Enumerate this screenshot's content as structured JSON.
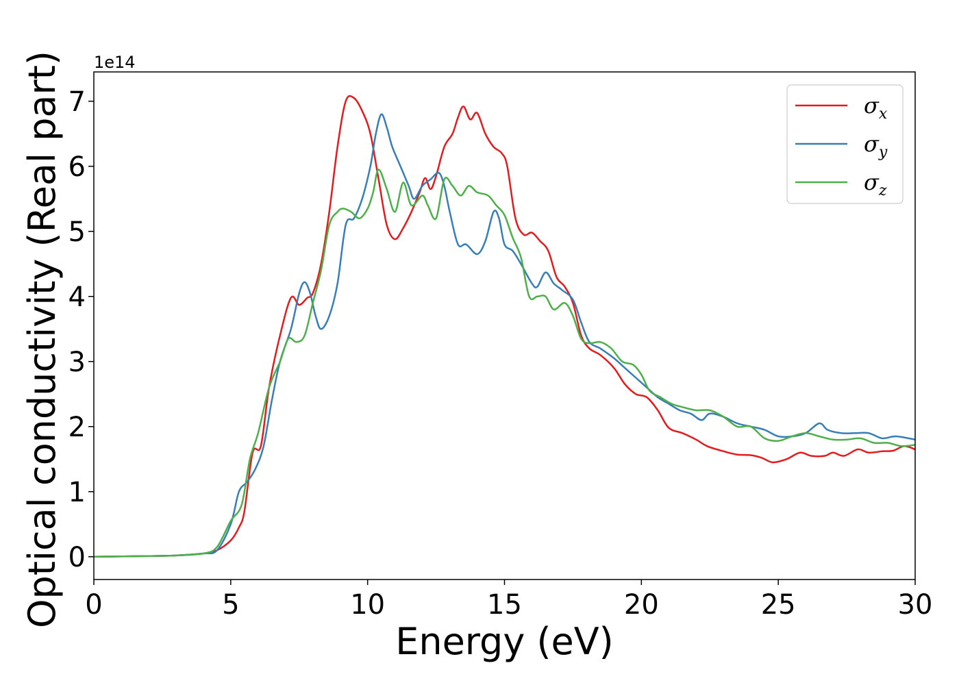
{
  "chart_data": {
    "type": "line",
    "xlabel": "Energy (eV)",
    "ylabel": "Optical conductivity (Real part)",
    "y_offset_label": "1e14",
    "y_scale": 100000000000000.0,
    "xlim": [
      0,
      30
    ],
    "ylim": [
      -0.35,
      7.45
    ],
    "x_ticks": [
      0,
      5,
      10,
      15,
      20,
      25,
      30
    ],
    "y_ticks": [
      0,
      1,
      2,
      3,
      4,
      5,
      6,
      7
    ],
    "grid": false,
    "legend_position": "top-right",
    "series": [
      {
        "name": "σx",
        "symbol": "σ",
        "subscript": "x",
        "color": "#e41a1c",
        "points": [
          [
            0,
            0
          ],
          [
            2,
            0.01
          ],
          [
            3,
            0.02
          ],
          [
            4,
            0.05
          ],
          [
            4.5,
            0.1
          ],
          [
            5,
            0.25
          ],
          [
            5.3,
            0.45
          ],
          [
            5.5,
            0.7
          ],
          [
            5.8,
            1.6
          ],
          [
            6.1,
            1.7
          ],
          [
            6.4,
            2.6
          ],
          [
            6.8,
            3.4
          ],
          [
            7.2,
            3.98
          ],
          [
            7.5,
            3.87
          ],
          [
            7.8,
            3.98
          ],
          [
            8,
            4.05
          ],
          [
            8.3,
            4.5
          ],
          [
            8.6,
            5.3
          ],
          [
            8.9,
            6.3
          ],
          [
            9.2,
            7.0
          ],
          [
            9.5,
            7.05
          ],
          [
            9.8,
            6.85
          ],
          [
            10.1,
            6.5
          ],
          [
            10.4,
            5.8
          ],
          [
            10.7,
            5.1
          ],
          [
            11,
            4.88
          ],
          [
            11.3,
            5.05
          ],
          [
            11.6,
            5.3
          ],
          [
            11.9,
            5.6
          ],
          [
            12.1,
            5.82
          ],
          [
            12.3,
            5.65
          ],
          [
            12.5,
            5.85
          ],
          [
            12.8,
            6.3
          ],
          [
            13.1,
            6.5
          ],
          [
            13.3,
            6.75
          ],
          [
            13.5,
            6.92
          ],
          [
            13.75,
            6.72
          ],
          [
            14,
            6.82
          ],
          [
            14.3,
            6.5
          ],
          [
            14.6,
            6.3
          ],
          [
            14.9,
            6.2
          ],
          [
            15.1,
            6.0
          ],
          [
            15.4,
            5.2
          ],
          [
            15.7,
            4.95
          ],
          [
            16,
            4.98
          ],
          [
            16.3,
            4.85
          ],
          [
            16.6,
            4.7
          ],
          [
            16.9,
            4.3
          ],
          [
            17.2,
            4.15
          ],
          [
            17.5,
            3.9
          ],
          [
            17.8,
            3.4
          ],
          [
            18.1,
            3.2
          ],
          [
            18.5,
            3.1
          ],
          [
            19,
            2.9
          ],
          [
            19.4,
            2.65
          ],
          [
            19.8,
            2.5
          ],
          [
            20.2,
            2.45
          ],
          [
            20.6,
            2.25
          ],
          [
            21,
            1.98
          ],
          [
            21.5,
            1.9
          ],
          [
            22,
            1.8
          ],
          [
            22.4,
            1.7
          ],
          [
            23,
            1.62
          ],
          [
            23.5,
            1.57
          ],
          [
            24,
            1.56
          ],
          [
            24.4,
            1.52
          ],
          [
            24.8,
            1.45
          ],
          [
            25.3,
            1.5
          ],
          [
            25.8,
            1.6
          ],
          [
            26.2,
            1.55
          ],
          [
            26.7,
            1.55
          ],
          [
            27,
            1.6
          ],
          [
            27.4,
            1.55
          ],
          [
            27.9,
            1.65
          ],
          [
            28.3,
            1.6
          ],
          [
            28.8,
            1.62
          ],
          [
            29.2,
            1.63
          ],
          [
            29.6,
            1.7
          ],
          [
            30,
            1.65
          ]
        ]
      },
      {
        "name": "σy",
        "symbol": "σ",
        "subscript": "y",
        "color": "#377eb8",
        "points": [
          [
            0,
            0
          ],
          [
            2,
            0.01
          ],
          [
            3,
            0.02
          ],
          [
            4,
            0.05
          ],
          [
            4.5,
            0.1
          ],
          [
            5,
            0.5
          ],
          [
            5.3,
            1.0
          ],
          [
            5.6,
            1.15
          ],
          [
            5.9,
            1.35
          ],
          [
            6.2,
            1.7
          ],
          [
            6.5,
            2.4
          ],
          [
            6.8,
            3.0
          ],
          [
            7.2,
            3.5
          ],
          [
            7.5,
            4.05
          ],
          [
            7.7,
            4.22
          ],
          [
            7.9,
            4.05
          ],
          [
            8.1,
            3.7
          ],
          [
            8.3,
            3.5
          ],
          [
            8.6,
            3.7
          ],
          [
            8.9,
            4.2
          ],
          [
            9.2,
            5.1
          ],
          [
            9.5,
            5.2
          ],
          [
            9.8,
            5.5
          ],
          [
            10.1,
            6.0
          ],
          [
            10.3,
            6.5
          ],
          [
            10.5,
            6.8
          ],
          [
            10.7,
            6.6
          ],
          [
            10.9,
            6.3
          ],
          [
            11.2,
            6.0
          ],
          [
            11.5,
            5.7
          ],
          [
            11.7,
            5.5
          ],
          [
            12,
            5.7
          ],
          [
            12.3,
            5.8
          ],
          [
            12.6,
            5.9
          ],
          [
            12.8,
            5.7
          ],
          [
            13,
            5.3
          ],
          [
            13.3,
            4.8
          ],
          [
            13.6,
            4.8
          ],
          [
            14,
            4.65
          ],
          [
            14.3,
            4.85
          ],
          [
            14.6,
            5.3
          ],
          [
            14.8,
            5.2
          ],
          [
            15,
            4.8
          ],
          [
            15.3,
            4.7
          ],
          [
            15.6,
            4.5
          ],
          [
            16,
            4.2
          ],
          [
            16.2,
            4.15
          ],
          [
            16.5,
            4.37
          ],
          [
            16.8,
            4.2
          ],
          [
            17.1,
            4.1
          ],
          [
            17.5,
            3.95
          ],
          [
            17.8,
            3.6
          ],
          [
            18.1,
            3.3
          ],
          [
            18.5,
            3.2
          ],
          [
            19,
            3.05
          ],
          [
            19.4,
            2.9
          ],
          [
            19.8,
            2.75
          ],
          [
            20.2,
            2.6
          ],
          [
            20.6,
            2.45
          ],
          [
            21,
            2.35
          ],
          [
            21.4,
            2.25
          ],
          [
            21.8,
            2.2
          ],
          [
            22.2,
            2.1
          ],
          [
            22.5,
            2.2
          ],
          [
            23,
            2.15
          ],
          [
            23.5,
            2.05
          ],
          [
            24,
            2.0
          ],
          [
            24.5,
            1.95
          ],
          [
            25,
            1.85
          ],
          [
            25.5,
            1.85
          ],
          [
            26,
            1.9
          ],
          [
            26.5,
            2.05
          ],
          [
            26.8,
            1.95
          ],
          [
            27.3,
            1.9
          ],
          [
            27.8,
            1.9
          ],
          [
            28.3,
            1.9
          ],
          [
            28.8,
            1.82
          ],
          [
            29.3,
            1.85
          ],
          [
            30,
            1.8
          ]
        ]
      },
      {
        "name": "σz",
        "symbol": "σ",
        "subscript": "z",
        "color": "#4daf4a",
        "points": [
          [
            0,
            0
          ],
          [
            2,
            0.01
          ],
          [
            3,
            0.02
          ],
          [
            4,
            0.05
          ],
          [
            4.5,
            0.15
          ],
          [
            5,
            0.55
          ],
          [
            5.4,
            0.8
          ],
          [
            5.7,
            1.5
          ],
          [
            6,
            1.9
          ],
          [
            6.4,
            2.6
          ],
          [
            6.8,
            3.0
          ],
          [
            7.1,
            3.35
          ],
          [
            7.4,
            3.3
          ],
          [
            7.7,
            3.4
          ],
          [
            8,
            3.9
          ],
          [
            8.3,
            4.4
          ],
          [
            8.6,
            5.1
          ],
          [
            8.9,
            5.3
          ],
          [
            9.1,
            5.35
          ],
          [
            9.4,
            5.3
          ],
          [
            9.7,
            5.2
          ],
          [
            10,
            5.35
          ],
          [
            10.2,
            5.6
          ],
          [
            10.4,
            5.95
          ],
          [
            10.7,
            5.65
          ],
          [
            11,
            5.3
          ],
          [
            11.3,
            5.75
          ],
          [
            11.6,
            5.4
          ],
          [
            12,
            5.55
          ],
          [
            12.2,
            5.4
          ],
          [
            12.5,
            5.2
          ],
          [
            12.8,
            5.8
          ],
          [
            13.1,
            5.7
          ],
          [
            13.4,
            5.55
          ],
          [
            13.7,
            5.7
          ],
          [
            14,
            5.6
          ],
          [
            14.4,
            5.55
          ],
          [
            14.7,
            5.4
          ],
          [
            15,
            5.25
          ],
          [
            15.3,
            4.9
          ],
          [
            15.6,
            4.6
          ],
          [
            15.9,
            4.0
          ],
          [
            16.2,
            4.0
          ],
          [
            16.5,
            4.0
          ],
          [
            16.8,
            3.8
          ],
          [
            17.2,
            3.9
          ],
          [
            17.5,
            3.7
          ],
          [
            17.8,
            3.35
          ],
          [
            18.1,
            3.28
          ],
          [
            18.5,
            3.3
          ],
          [
            18.9,
            3.2
          ],
          [
            19.3,
            3.0
          ],
          [
            19.7,
            2.95
          ],
          [
            20,
            2.8
          ],
          [
            20.3,
            2.55
          ],
          [
            20.7,
            2.45
          ],
          [
            21.1,
            2.35
          ],
          [
            21.5,
            2.3
          ],
          [
            22,
            2.25
          ],
          [
            22.5,
            2.25
          ],
          [
            23,
            2.15
          ],
          [
            23.5,
            2.0
          ],
          [
            24,
            2.0
          ],
          [
            24.5,
            1.82
          ],
          [
            25,
            1.78
          ],
          [
            25.5,
            1.85
          ],
          [
            26,
            1.9
          ],
          [
            26.5,
            1.85
          ],
          [
            27,
            1.8
          ],
          [
            27.5,
            1.8
          ],
          [
            28,
            1.82
          ],
          [
            28.5,
            1.75
          ],
          [
            29,
            1.75
          ],
          [
            29.5,
            1.7
          ],
          [
            30,
            1.72
          ]
        ]
      }
    ]
  }
}
